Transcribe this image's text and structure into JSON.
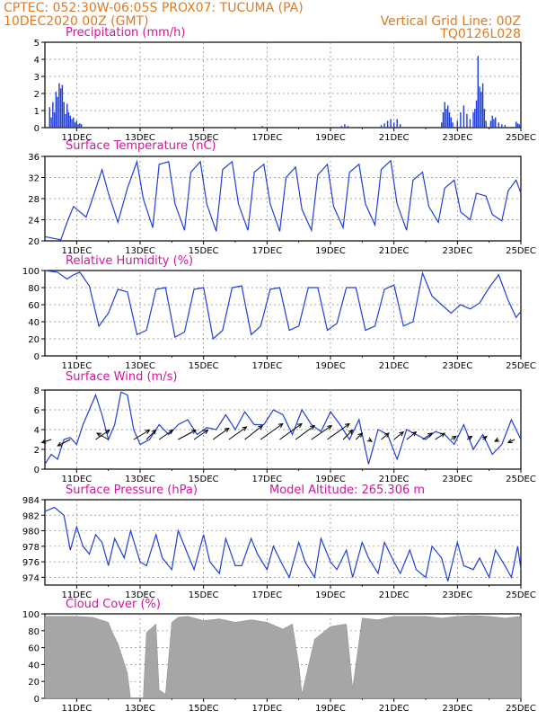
{
  "header": {
    "line1": "CPTEC:   052:30W-06:05S   PROX07: TUCUMA (PA)",
    "line2": "10DEC2020 00Z (GMT)",
    "grid_note": "Vertical Grid Line: 00Z",
    "code": "TQ0126L028"
  },
  "colors": {
    "header": "#e07a1f",
    "title": "#d4149a",
    "series": "#1f3fd8",
    "cloud": "#a6a6a6",
    "arrow": "#000000"
  },
  "chart_data": [
    {
      "type": "bar",
      "title": "Precipitation (mm/h)",
      "x_labels": [
        "11DEC",
        "13DEC",
        "15DEC",
        "17DEC",
        "19DEC",
        "21DEC",
        "23DEC",
        "25DEC"
      ],
      "x_range_days": [
        0,
        15
      ],
      "ylim": [
        0,
        5
      ],
      "yticks": [
        0,
        1,
        2,
        3,
        4,
        5
      ],
      "grid": "dashed",
      "x": [
        0.15,
        0.2,
        0.25,
        0.3,
        0.35,
        0.4,
        0.45,
        0.5,
        0.55,
        0.6,
        0.65,
        0.7,
        0.75,
        0.8,
        0.85,
        0.9,
        0.95,
        1.0,
        1.05,
        1.1,
        1.15,
        6.85,
        9.35,
        9.45,
        9.55,
        10.6,
        10.7,
        10.8,
        10.9,
        11.0,
        11.1,
        11.2,
        12.5,
        12.55,
        12.6,
        12.65,
        12.7,
        12.75,
        12.8,
        12.85,
        13.0,
        13.1,
        13.2,
        13.3,
        13.4,
        13.5,
        13.55,
        13.6,
        13.65,
        13.7,
        13.75,
        13.8,
        13.85,
        13.9,
        14.05,
        14.1,
        14.15,
        14.2,
        14.3,
        14.4,
        14.5,
        14.85,
        14.9,
        14.95
      ],
      "y": [
        1.2,
        0.6,
        1.5,
        0.9,
        2.1,
        1.8,
        2.6,
        2.3,
        2.5,
        1.5,
        0.8,
        1.4,
        0.9,
        0.7,
        0.5,
        0.6,
        0.3,
        0.4,
        0.2,
        0.25,
        0.2,
        0.1,
        0.1,
        0.2,
        0.1,
        0.15,
        0.25,
        0.4,
        0.5,
        0.3,
        0.5,
        0.2,
        0.3,
        0.9,
        1.5,
        1.1,
        1.3,
        0.9,
        0.6,
        0.3,
        0.4,
        0.9,
        1.3,
        0.8,
        0.5,
        0.9,
        1.1,
        1.6,
        4.2,
        2.4,
        2.1,
        2.6,
        1.1,
        0.4,
        0.4,
        0.7,
        0.5,
        0.6,
        0.3,
        0.2,
        0.15,
        0.35,
        0.25,
        0.2
      ]
    },
    {
      "type": "line",
      "title": "Surface Temperature (nC)",
      "x_labels": [
        "11DEC",
        "13DEC",
        "15DEC",
        "17DEC",
        "19DEC",
        "21DEC",
        "23DEC",
        "25DEC"
      ],
      "x_range_days": [
        0,
        15
      ],
      "ylim": [
        20,
        36
      ],
      "yticks": [
        20,
        24,
        28,
        32,
        36
      ],
      "grid": "dashed",
      "x": [
        0,
        0.5,
        0.7,
        0.9,
        1.1,
        1.3,
        1.5,
        1.8,
        2.0,
        2.3,
        2.6,
        2.9,
        3.1,
        3.4,
        3.6,
        3.9,
        4.1,
        4.4,
        4.6,
        4.9,
        5.1,
        5.4,
        5.6,
        5.9,
        6.1,
        6.4,
        6.6,
        6.9,
        7.1,
        7.4,
        7.6,
        7.9,
        8.1,
        8.4,
        8.6,
        8.9,
        9.1,
        9.4,
        9.6,
        9.9,
        10.1,
        10.4,
        10.6,
        10.9,
        11.1,
        11.4,
        11.6,
        11.9,
        12.1,
        12.4,
        12.6,
        12.9,
        13.1,
        13.4,
        13.6,
        13.9,
        14.1,
        14.4,
        14.6,
        14.85,
        15.0
      ],
      "y": [
        20.8,
        20.2,
        23.5,
        26.5,
        25.5,
        24.5,
        28,
        33.5,
        29,
        23.5,
        30,
        35,
        28,
        22.5,
        34.5,
        35,
        27,
        22,
        33,
        35,
        27,
        21.8,
        33.5,
        35,
        27,
        22,
        33,
        34.5,
        27,
        21.8,
        32,
        34,
        26,
        22,
        32.5,
        34.5,
        26.5,
        22.5,
        33,
        34.5,
        27,
        23,
        33.5,
        35.2,
        27,
        22,
        31.5,
        33,
        26.5,
        23.5,
        30,
        31.5,
        25.5,
        24,
        29,
        28.5,
        25,
        23.8,
        29.5,
        31.5,
        29
      ]
    },
    {
      "type": "line",
      "title": "Relative Humidity (%)",
      "x_labels": [
        "11DEC",
        "13DEC",
        "15DEC",
        "17DEC",
        "19DEC",
        "21DEC",
        "23DEC",
        "25DEC"
      ],
      "x_range_days": [
        0,
        15
      ],
      "ylim": [
        0,
        100
      ],
      "yticks": [
        0,
        20,
        40,
        60,
        80,
        100
      ],
      "grid": "dashed",
      "x": [
        0,
        0.4,
        0.7,
        0.9,
        1.1,
        1.4,
        1.7,
        2.0,
        2.3,
        2.6,
        2.9,
        3.2,
        3.5,
        3.8,
        4.1,
        4.4,
        4.7,
        5.0,
        5.3,
        5.6,
        5.9,
        6.2,
        6.5,
        6.8,
        7.1,
        7.4,
        7.7,
        8.0,
        8.3,
        8.6,
        8.9,
        9.2,
        9.5,
        9.8,
        10.1,
        10.4,
        10.7,
        11.0,
        11.3,
        11.6,
        11.9,
        12.2,
        12.5,
        12.8,
        13.1,
        13.4,
        13.7,
        14.0,
        14.3,
        14.6,
        14.85,
        15.0
      ],
      "y": [
        100,
        98,
        90,
        95,
        98,
        82,
        35,
        50,
        78,
        75,
        25,
        30,
        78,
        80,
        22,
        28,
        78,
        80,
        20,
        30,
        80,
        82,
        25,
        35,
        78,
        80,
        30,
        35,
        80,
        80,
        30,
        38,
        80,
        80,
        30,
        35,
        78,
        83,
        35,
        40,
        97,
        70,
        60,
        50,
        60,
        55,
        62,
        80,
        95,
        65,
        45,
        52
      ]
    },
    {
      "type": "line",
      "title": "Surface Wind (m/s)",
      "x_labels": [
        "11DEC",
        "13DEC",
        "15DEC",
        "17DEC",
        "19DEC",
        "21DEC",
        "23DEC",
        "25DEC"
      ],
      "x_range_days": [
        0,
        15
      ],
      "ylim": [
        0,
        8
      ],
      "yticks": [
        0,
        2,
        4,
        6,
        8
      ],
      "grid": "dashed",
      "x": [
        0,
        0.2,
        0.4,
        0.6,
        0.8,
        1.0,
        1.2,
        1.4,
        1.6,
        1.8,
        2.0,
        2.2,
        2.4,
        2.6,
        2.8,
        3.0,
        3.3,
        3.6,
        3.9,
        4.2,
        4.5,
        4.8,
        5.1,
        5.4,
        5.7,
        6.0,
        6.3,
        6.6,
        6.9,
        7.2,
        7.5,
        7.8,
        8.1,
        8.4,
        8.7,
        9.0,
        9.3,
        9.6,
        9.9,
        10.2,
        10.5,
        10.8,
        11.1,
        11.4,
        11.7,
        12.0,
        12.3,
        12.6,
        12.9,
        13.2,
        13.5,
        13.8,
        14.1,
        14.4,
        14.7,
        15.0
      ],
      "y": [
        0.5,
        1.5,
        1.0,
        3.0,
        3.2,
        2.5,
        4.5,
        6.0,
        7.5,
        5.5,
        3.0,
        4.5,
        7.8,
        7.5,
        4.0,
        2.5,
        3.0,
        4.5,
        3.5,
        4.5,
        5.0,
        3.5,
        4.2,
        4.0,
        5.5,
        4.0,
        5.8,
        4.5,
        4.5,
        6.0,
        5.5,
        3.5,
        6.0,
        4.5,
        3.8,
        5.8,
        4.5,
        3.0,
        5.0,
        0.5,
        4.0,
        3.5,
        1.0,
        4.0,
        3.5,
        3.0,
        3.8,
        3.5,
        2.5,
        4.5,
        2.0,
        3.5,
        1.5,
        2.5,
        5.0,
        3.0
      ]
    },
    {
      "type": "line",
      "title": "Surface Pressure (hPa)",
      "subtitle": "Model Altitude: 265.306 m",
      "x_labels": [
        "11DEC",
        "13DEC",
        "15DEC",
        "17DEC",
        "19DEC",
        "21DEC",
        "23DEC",
        "25DEC"
      ],
      "x_range_days": [
        0,
        15
      ],
      "ylim": [
        973,
        984
      ],
      "yticks": [
        974,
        976,
        978,
        980,
        982,
        984
      ],
      "grid": "dashed",
      "x": [
        0,
        0.3,
        0.6,
        0.8,
        1.0,
        1.2,
        1.4,
        1.6,
        1.8,
        2.0,
        2.2,
        2.5,
        2.7,
        3.0,
        3.2,
        3.5,
        3.7,
        4.0,
        4.2,
        4.5,
        4.7,
        5.0,
        5.2,
        5.5,
        5.7,
        6.0,
        6.2,
        6.5,
        6.7,
        7.0,
        7.2,
        7.5,
        7.7,
        8.0,
        8.2,
        8.5,
        8.7,
        9.0,
        9.2,
        9.5,
        9.7,
        10.0,
        10.2,
        10.5,
        10.7,
        11.0,
        11.2,
        11.5,
        11.7,
        12.0,
        12.2,
        12.5,
        12.7,
        13.0,
        13.2,
        13.5,
        13.7,
        14.0,
        14.2,
        14.5,
        14.7,
        14.9,
        15.0
      ],
      "y": [
        982.5,
        983.0,
        982.0,
        977.5,
        980.5,
        978.0,
        977.0,
        979.5,
        978.5,
        975.5,
        979.0,
        976.5,
        980.0,
        976.0,
        975.5,
        979.5,
        976.5,
        975.0,
        980.0,
        977.0,
        975.0,
        979.5,
        976.0,
        974.5,
        979.0,
        975.5,
        975.5,
        979.0,
        977.0,
        975.0,
        978.0,
        975.5,
        974.0,
        978.5,
        976.0,
        974.0,
        979.0,
        976.0,
        975.0,
        977.5,
        974.0,
        978.5,
        976.5,
        974.5,
        978.5,
        976.0,
        974.5,
        977.5,
        975.0,
        974.0,
        978.0,
        976.5,
        973.5,
        978.5,
        975.5,
        975.0,
        976.5,
        974.0,
        977.5,
        975.5,
        974.0,
        978.0,
        975.0
      ]
    },
    {
      "type": "area",
      "title": "Cloud Cover (%)",
      "x_labels": [
        "11DEC",
        "13DEC",
        "15DEC",
        "17DEC",
        "19DEC",
        "21DEC",
        "23DEC",
        "25DEC"
      ],
      "x_range_days": [
        0,
        15
      ],
      "ylim": [
        0,
        100
      ],
      "yticks": [
        0,
        20,
        40,
        60,
        80,
        100
      ],
      "grid": "dashed",
      "x": [
        0,
        1.0,
        1.5,
        2.0,
        2.1,
        2.3,
        2.6,
        2.7,
        3.1,
        3.2,
        3.5,
        3.6,
        3.8,
        4.0,
        4.2,
        4.5,
        5.0,
        5.5,
        6.0,
        6.5,
        7.0,
        7.5,
        7.8,
        8.0,
        8.1,
        8.5,
        9.0,
        9.5,
        9.7,
        10.0,
        10.5,
        11.0,
        11.5,
        12.0,
        12.5,
        13.0,
        13.5,
        14.0,
        14.5,
        15.0
      ],
      "y": [
        97,
        97,
        96,
        90,
        80,
        65,
        30,
        0,
        0,
        78,
        88,
        10,
        5,
        90,
        96,
        97,
        92,
        94,
        90,
        93,
        90,
        82,
        88,
        40,
        5,
        70,
        85,
        88,
        12,
        95,
        93,
        97,
        97,
        97,
        95,
        97,
        98,
        97,
        95,
        97
      ]
    }
  ],
  "wind_arrows": {
    "legend_speed": "",
    "x": [
      0.2,
      0.8,
      1.6,
      2.0,
      2.8,
      3.2,
      3.6,
      4.2,
      4.7,
      5.3,
      5.8,
      6.3,
      6.8,
      7.4,
      7.9,
      8.4,
      8.9,
      9.4,
      9.8,
      10.2,
      10.6,
      11.0,
      11.4,
      11.9,
      12.3,
      12.8,
      13.3,
      13.8,
      14.3,
      14.8
    ],
    "u": [
      -1.5,
      -2,
      2.2,
      -1.8,
      2.5,
      1.5,
      2.2,
      2.8,
      2.2,
      2.5,
      2.8,
      2.8,
      3.5,
      3.5,
      3.0,
      3.2,
      3.5,
      1.5,
      1.0,
      0.5,
      1.2,
      1.5,
      1.5,
      1.5,
      1.5,
      0.8,
      0.8,
      0.6,
      -0.6,
      -1.0
    ],
    "v": [
      -0.5,
      -1,
      1.5,
      1.0,
      1.5,
      1.5,
      1.5,
      1.5,
      1.5,
      1.8,
      2.0,
      2.2,
      2.5,
      2.5,
      2.2,
      2.2,
      2.5,
      1.5,
      1.0,
      -0.3,
      1.0,
      1.2,
      1.2,
      1.0,
      1.0,
      0.5,
      0.5,
      0.5,
      -0.3,
      -0.5
    ]
  }
}
